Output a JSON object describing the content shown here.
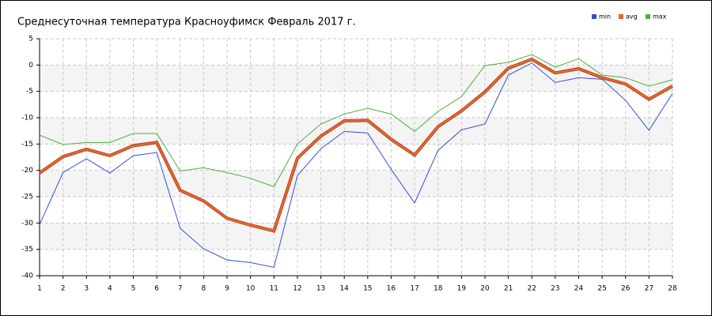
{
  "chart_data": {
    "type": "line",
    "title": "Среднесуточная температура Красноуфимск  Февраль 2017 г.",
    "x": [
      1,
      2,
      3,
      4,
      5,
      6,
      7,
      8,
      9,
      10,
      11,
      12,
      13,
      14,
      15,
      16,
      17,
      18,
      19,
      20,
      21,
      22,
      23,
      24,
      25,
      26,
      27,
      28
    ],
    "xlim": [
      1,
      28
    ],
    "xticks": [
      1,
      2,
      3,
      4,
      5,
      6,
      7,
      8,
      9,
      10,
      11,
      12,
      13,
      14,
      15,
      16,
      17,
      18,
      19,
      20,
      21,
      22,
      23,
      24,
      25,
      26,
      27,
      28
    ],
    "ylim": [
      -40,
      5
    ],
    "yticks": [
      -40,
      -35,
      -30,
      -25,
      -20,
      -15,
      -10,
      -5,
      0,
      5
    ],
    "grid": true,
    "legend": "top-right",
    "series": [
      {
        "name": "min",
        "color": "#3050d8",
        "values": [
          -30.3,
          -20.4,
          -17.8,
          -20.5,
          -17.2,
          -16.6,
          -31,
          -34.9,
          -37,
          -37.5,
          -38.4,
          -21,
          -15.9,
          -12.6,
          -12.9,
          -19.8,
          -26.2,
          -16.2,
          -12.3,
          -11.2,
          -1.9,
          0.4,
          -3.3,
          -2.4,
          -2.7,
          -6.7,
          -12.4,
          -5.4
        ]
      },
      {
        "name": "avg",
        "color": "#e8642c",
        "values": [
          -20.5,
          -17.4,
          -16,
          -17.2,
          -15.3,
          -14.7,
          -23.8,
          -25.8,
          -29.1,
          -30.4,
          -31.5,
          -17.7,
          -13.5,
          -10.6,
          -10.5,
          -14.1,
          -17.1,
          -11.7,
          -8.7,
          -5.1,
          -0.6,
          1.1,
          -1.5,
          -0.7,
          -2.4,
          -3.6,
          -6.5,
          -4
        ]
      },
      {
        "name": "max",
        "color": "#4caf3c",
        "values": [
          -13.3,
          -15.1,
          -14.7,
          -14.7,
          -13,
          -13,
          -20.1,
          -19.5,
          -20.4,
          -21.5,
          -23.1,
          -15,
          -11.2,
          -9.3,
          -8.2,
          -9.3,
          -12.6,
          -8.8,
          -6,
          -0.1,
          0.5,
          2,
          -0.4,
          1.2,
          -1.9,
          -2.4,
          -4,
          -2.8
        ]
      }
    ]
  }
}
